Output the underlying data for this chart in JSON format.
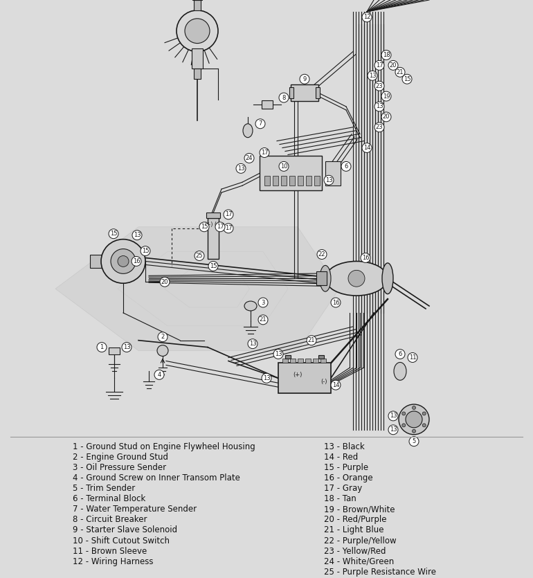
{
  "bg_color": "#e8e8e8",
  "legend_bg": "#e0e0e0",
  "legend_left": [
    "1 - Ground Stud on Engine Flywheel Housing",
    "2 - Engine Ground Stud",
    "3 - Oil Pressure Sender",
    "4 - Ground Screw on Inner Transom Plate",
    "5 - Trim Sender",
    "6 - Terminal Block",
    "7 - Water Temperature Sender",
    "8 - Circuit Breaker",
    "9 - Starter Slave Solenoid",
    "10 - Shift Cutout Switch",
    "11 - Brown Sleeve",
    "12 - Wiring Harness"
  ],
  "legend_right": [
    "13 - Black",
    "14 - Red",
    "15 - Purple",
    "16 - Orange",
    "17 - Gray",
    "18 - Tan",
    "19 - Brown/White",
    "20 - Red/Purple",
    "21 - Light Blue",
    "22 - Purple/Yellow",
    "23 - Yellow/Red",
    "24 - White/Green",
    "25 - Purple Resistance Wire"
  ],
  "line_color": "#1a1a1a",
  "engine_bg_color": "#d0d4dc"
}
